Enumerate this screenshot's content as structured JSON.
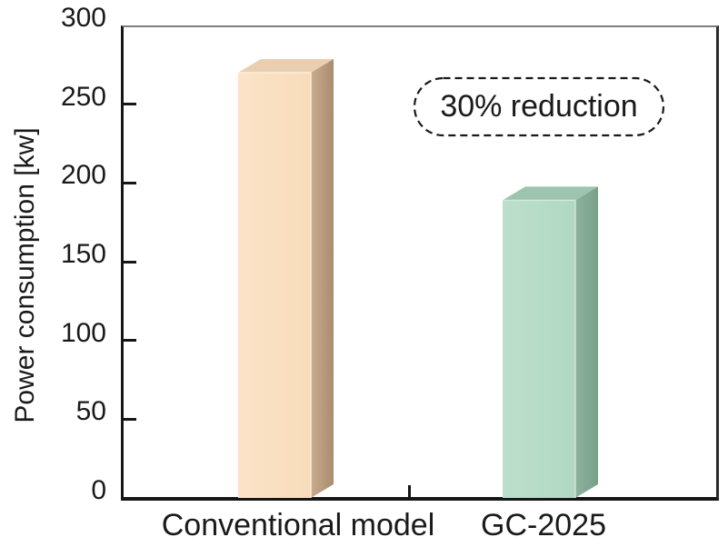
{
  "chart_data": {
    "type": "bar",
    "title": "",
    "ylabel": "Power consumption [kw]",
    "xlabel": "",
    "ylim": [
      0,
      300
    ],
    "yticks": [
      0,
      50,
      100,
      150,
      200,
      250,
      300
    ],
    "categories": [
      "Conventional model",
      "GC-2025"
    ],
    "values": [
      270,
      189
    ],
    "annotation": {
      "label": "30% reduction",
      "style": "dashed-rounded-box"
    },
    "legend": "none",
    "grid": false,
    "axis_color": "#161616",
    "text_color": "#1a1a1a",
    "bars": [
      {
        "label": "Conventional model",
        "value": 270,
        "front_color": "#fce3c8",
        "front_color_right": "#f8dcba",
        "top_color": "#e9cfb0",
        "side_color_left": "#c9ac8e",
        "side_color_right": "#aa8c6d",
        "edge_highlight": "#fdeedd"
      },
      {
        "label": "GC-2025",
        "value": 189,
        "front_color": "#bcdfcc",
        "front_color_right": "#b1d8c3",
        "top_color": "#9dc4ae",
        "side_color_left": "#8db29e",
        "side_color_right": "#78a089",
        "edge_highlight": "#d2e9dc"
      }
    ]
  }
}
